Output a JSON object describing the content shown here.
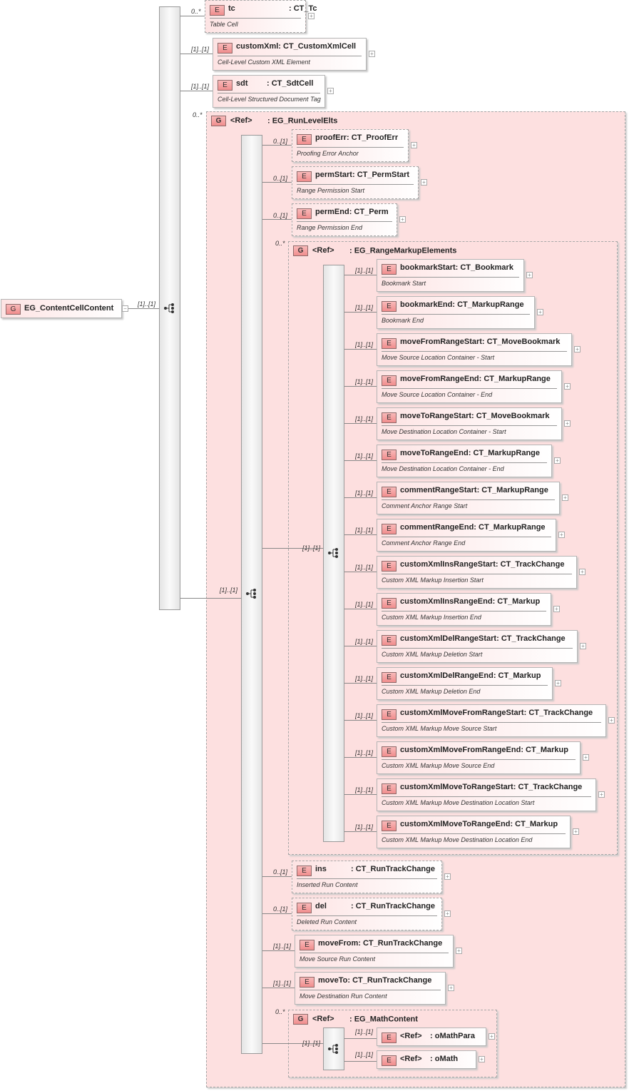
{
  "root": {
    "badge": "G",
    "name": "EG_ContentCellContent",
    "occurrence": "[1]..[1]",
    "collapse_icon": "minus-icon"
  },
  "top_elements": [
    {
      "badge": "E",
      "name": "tc",
      "type": ": CT_Tc",
      "desc": "Table Cell",
      "occurrence": "0..*",
      "optional": true
    },
    {
      "badge": "E",
      "name": "customXml",
      "type": ": CT_CustomXmlCell",
      "desc": "Cell-Level Custom XML Element",
      "occurrence": "[1]..[1]"
    },
    {
      "badge": "E",
      "name": "sdt",
      "type": ": CT_SdtCell",
      "desc": "Cell-Level Structured Document Tag",
      "occurrence": "[1]..[1]"
    }
  ],
  "run_level_group": {
    "badge": "G",
    "ref": "<Ref>",
    "type": ": EG_RunLevelElts",
    "occurrence": "0..*",
    "link_occurrence": "[1]..[1]"
  },
  "run_level_elements_before": [
    {
      "badge": "E",
      "name": "proofErr",
      "type": ": CT_ProofErr",
      "desc": "Proofing Error Anchor",
      "occurrence": "0..[1]",
      "optional": true
    },
    {
      "badge": "E",
      "name": "permStart",
      "type": ": CT_PermStart",
      "desc": "Range Permission Start",
      "occurrence": "0..[1]",
      "optional": true
    },
    {
      "badge": "E",
      "name": "permEnd",
      "type": ": CT_Perm",
      "desc": "Range Permission End",
      "occurrence": "0..[1]",
      "optional": true
    }
  ],
  "range_markup_group": {
    "badge": "G",
    "ref": "<Ref>",
    "type": ": EG_RangeMarkupElements",
    "occurrence": "0..*",
    "link_occurrence": "[1]..[1]"
  },
  "range_markup_elements": [
    {
      "badge": "E",
      "name": "bookmarkStart",
      "type": ": CT_Bookmark",
      "desc": "Bookmark Start",
      "occurrence": "[1]..[1]"
    },
    {
      "badge": "E",
      "name": "bookmarkEnd",
      "type": ": CT_MarkupRange",
      "desc": "Bookmark End",
      "occurrence": "[1]..[1]"
    },
    {
      "badge": "E",
      "name": "moveFromRangeStart",
      "type": ": CT_MoveBookmark",
      "desc": "Move Source Location Container - Start",
      "occurrence": "[1]..[1]"
    },
    {
      "badge": "E",
      "name": "moveFromRangeEnd",
      "type": ": CT_MarkupRange",
      "desc": "Move Source Location Container - End",
      "occurrence": "[1]..[1]"
    },
    {
      "badge": "E",
      "name": "moveToRangeStart",
      "type": ": CT_MoveBookmark",
      "desc": "Move Destination Location Container - Start",
      "occurrence": "[1]..[1]"
    },
    {
      "badge": "E",
      "name": "moveToRangeEnd",
      "type": ": CT_MarkupRange",
      "desc": "Move Destination Location Container - End",
      "occurrence": "[1]..[1]"
    },
    {
      "badge": "E",
      "name": "commentRangeStart",
      "type": ": CT_MarkupRange",
      "desc": "Comment Anchor Range Start",
      "occurrence": "[1]..[1]"
    },
    {
      "badge": "E",
      "name": "commentRangeEnd",
      "type": ": CT_MarkupRange",
      "desc": "Comment Anchor Range End",
      "occurrence": "[1]..[1]"
    },
    {
      "badge": "E",
      "name": "customXmlInsRangeStart",
      "type": ": CT_TrackChange",
      "desc": "Custom XML Markup Insertion Start",
      "occurrence": "[1]..[1]"
    },
    {
      "badge": "E",
      "name": "customXmlInsRangeEnd",
      "type": ": CT_Markup",
      "desc": "Custom XML Markup Insertion End",
      "occurrence": "[1]..[1]"
    },
    {
      "badge": "E",
      "name": "customXmlDelRangeStart",
      "type": ": CT_TrackChange",
      "desc": "Custom XML Markup Deletion Start",
      "occurrence": "[1]..[1]"
    },
    {
      "badge": "E",
      "name": "customXmlDelRangeEnd",
      "type": ": CT_Markup",
      "desc": "Custom XML Markup Deletion End",
      "occurrence": "[1]..[1]"
    },
    {
      "badge": "E",
      "name": "customXmlMoveFromRangeStart",
      "type": ": CT_TrackChange",
      "desc": "Custom XML Markup Move Source Start",
      "occurrence": "[1]..[1]"
    },
    {
      "badge": "E",
      "name": "customXmlMoveFromRangeEnd",
      "type": ": CT_Markup",
      "desc": "Custom XML Markup Move Source End",
      "occurrence": "[1]..[1]"
    },
    {
      "badge": "E",
      "name": "customXmlMoveToRangeStart",
      "type": ": CT_TrackChange",
      "desc": "Custom XML Markup Move Destination Location Start",
      "occurrence": "[1]..[1]"
    },
    {
      "badge": "E",
      "name": "customXmlMoveToRangeEnd",
      "type": ": CT_Markup",
      "desc": "Custom XML Markup Move Destination Location End",
      "occurrence": "[1]..[1]"
    }
  ],
  "run_level_elements_after": [
    {
      "badge": "E",
      "name": "ins",
      "type": ": CT_RunTrackChange",
      "desc": "Inserted Run Content",
      "occurrence": "0..[1]",
      "optional": true
    },
    {
      "badge": "E",
      "name": "del",
      "type": ": CT_RunTrackChange",
      "desc": "Deleted Run Content",
      "occurrence": "0..[1]",
      "optional": true
    },
    {
      "badge": "E",
      "name": "moveFrom",
      "type": ": CT_RunTrackChange",
      "desc": "Move Source Run Content",
      "occurrence": "[1]..[1]"
    },
    {
      "badge": "E",
      "name": "moveTo",
      "type": ": CT_RunTrackChange",
      "desc": "Move Destination Run Content",
      "occurrence": "[1]..[1]"
    }
  ],
  "math_group": {
    "badge": "G",
    "ref": "<Ref>",
    "type": ": EG_MathContent",
    "occurrence": "0..*",
    "link_occurrence": "[1]..[1]"
  },
  "math_elements": [
    {
      "badge": "E",
      "name": "<Ref>",
      "type": ": oMathPara",
      "occurrence": "[1]..[1]"
    },
    {
      "badge": "E",
      "name": "<Ref>",
      "type": ": oMath",
      "occurrence": "[1]..[1]"
    }
  ],
  "colors": {
    "element_badge": "#f08d8d",
    "group_fill": "#fde0e0",
    "box_gradient_start": "#fde3e3"
  }
}
